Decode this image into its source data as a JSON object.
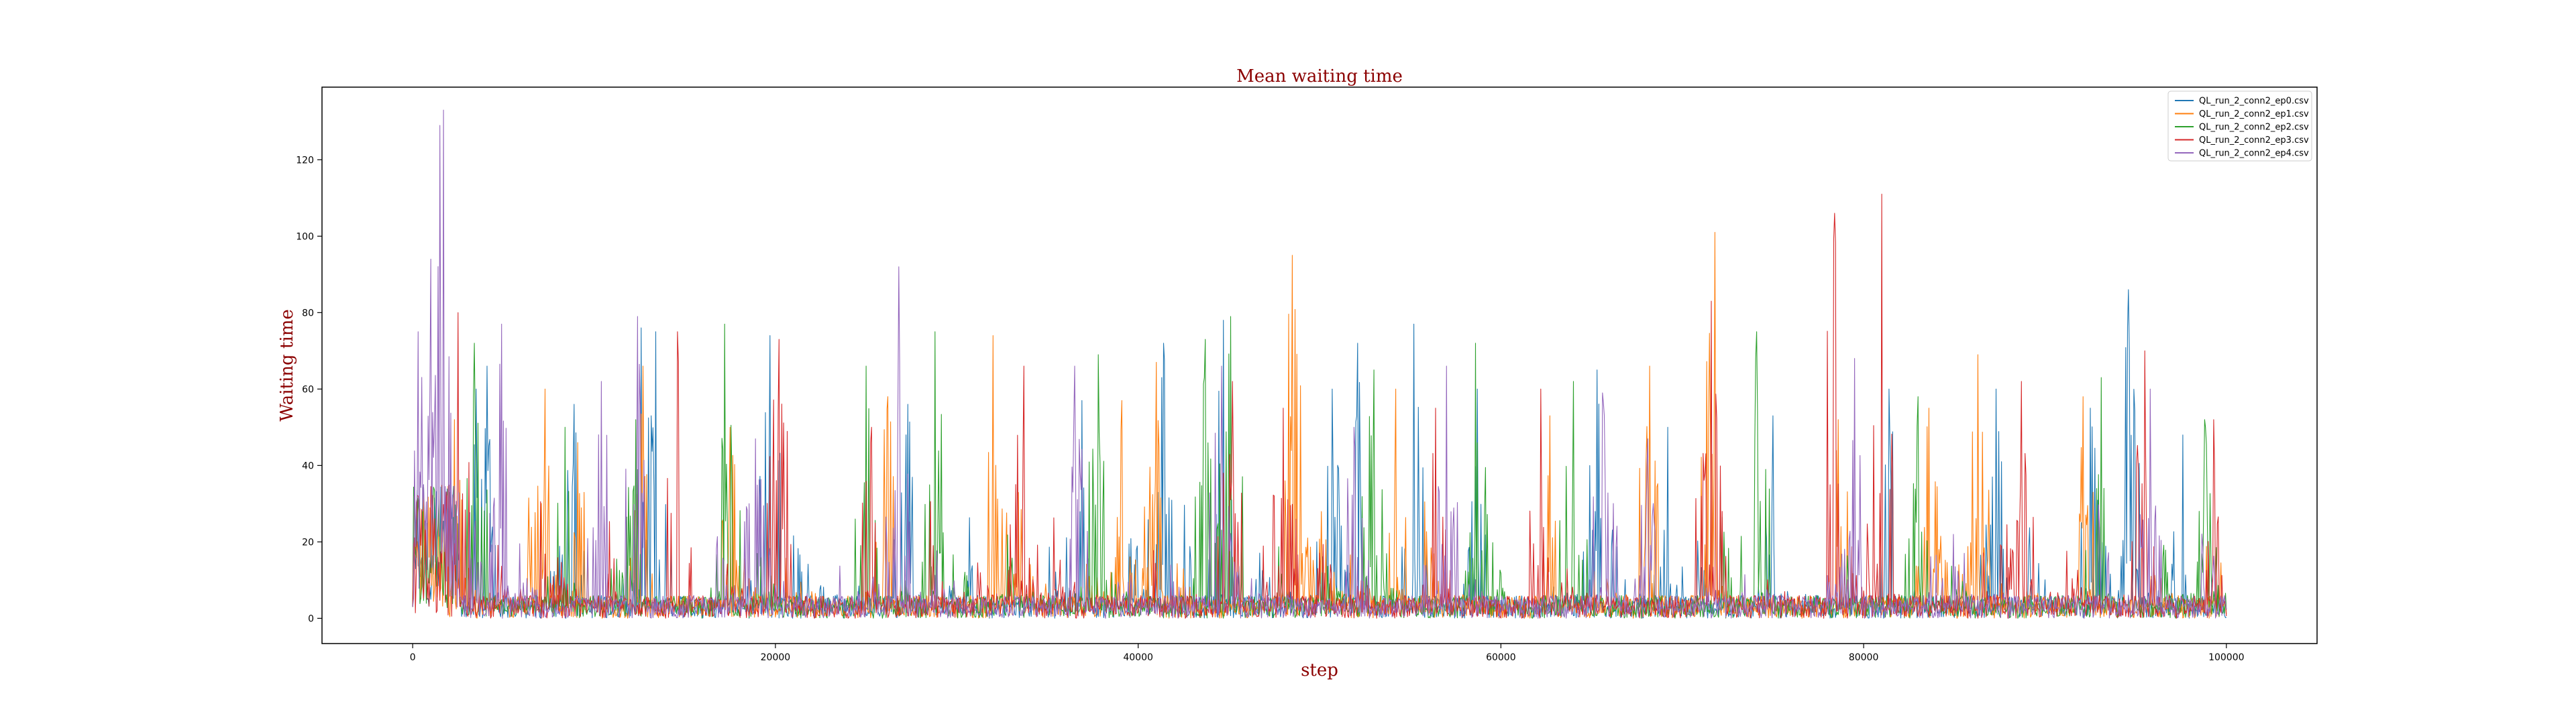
{
  "chart_data": {
    "type": "line",
    "title": "Mean waiting time",
    "xlabel": "step",
    "ylabel": "Waiting time",
    "xlim": [
      -5000,
      105000
    ],
    "ylim": [
      -6.6,
      139
    ],
    "xticks": [
      0,
      20000,
      40000,
      60000,
      80000,
      100000
    ],
    "yticks": [
      0,
      20,
      40,
      60,
      80,
      100,
      120
    ],
    "grid": false,
    "legend_position": "top-right",
    "title_color": "#8b0000",
    "label_color": "#8b0000",
    "series": [
      {
        "name": "QL_run_2_conn2_ep0.csv",
        "color": "#1f77b4",
        "peaks": [
          [
            600,
            35
          ],
          [
            3500,
            60
          ],
          [
            4100,
            66
          ],
          [
            8900,
            56
          ],
          [
            12600,
            76
          ],
          [
            13400,
            75
          ],
          [
            19700,
            74
          ],
          [
            27300,
            56
          ],
          [
            36900,
            57
          ],
          [
            41400,
            72
          ],
          [
            44700,
            78
          ],
          [
            50700,
            60
          ],
          [
            52100,
            72
          ],
          [
            55200,
            77
          ],
          [
            58700,
            60
          ],
          [
            65300,
            65
          ],
          [
            69200,
            50
          ],
          [
            75000,
            53
          ],
          [
            81400,
            60
          ],
          [
            87300,
            60
          ],
          [
            92500,
            55
          ],
          [
            94600,
            86
          ],
          [
            97600,
            48
          ]
        ]
      },
      {
        "name": "QL_run_2_conn2_ep1.csv",
        "color": "#ff7f0e",
        "peaks": [
          [
            2300,
            52
          ],
          [
            7300,
            60
          ],
          [
            9100,
            46
          ],
          [
            12700,
            66
          ],
          [
            17500,
            50
          ],
          [
            26200,
            58
          ],
          [
            32000,
            74
          ],
          [
            39100,
            57
          ],
          [
            41000,
            67
          ],
          [
            48500,
            95
          ],
          [
            54200,
            60
          ],
          [
            62700,
            53
          ],
          [
            68200,
            66
          ],
          [
            71800,
            101
          ],
          [
            78600,
            52
          ],
          [
            83600,
            55
          ],
          [
            86300,
            69
          ],
          [
            92100,
            58
          ]
        ]
      },
      {
        "name": "QL_run_2_conn2_ep2.csv",
        "color": "#2ca02c",
        "peaks": [
          [
            3400,
            72
          ],
          [
            8400,
            50
          ],
          [
            12300,
            52
          ],
          [
            17200,
            77
          ],
          [
            25000,
            66
          ],
          [
            28800,
            75
          ],
          [
            37800,
            69
          ],
          [
            43700,
            73
          ],
          [
            45100,
            79
          ],
          [
            53000,
            65
          ],
          [
            58600,
            72
          ],
          [
            64000,
            62
          ],
          [
            74100,
            75
          ],
          [
            83000,
            58
          ],
          [
            93100,
            63
          ],
          [
            98800,
            52
          ]
        ]
      },
      {
        "name": "QL_run_2_conn2_ep3.csv",
        "color": "#d62728",
        "peaks": [
          [
            2500,
            80
          ],
          [
            14600,
            75
          ],
          [
            20200,
            73
          ],
          [
            25300,
            50
          ],
          [
            33700,
            66
          ],
          [
            45200,
            62
          ],
          [
            48000,
            55
          ],
          [
            56400,
            55
          ],
          [
            62200,
            60
          ],
          [
            71600,
            83
          ],
          [
            78400,
            106
          ],
          [
            81000,
            111
          ],
          [
            88700,
            62
          ],
          [
            95500,
            70
          ],
          [
            99300,
            52
          ]
        ]
      },
      {
        "name": "QL_run_2_conn2_ep4.csv",
        "color": "#9467bd",
        "peaks": [
          [
            300,
            75
          ],
          [
            1000,
            94
          ],
          [
            1500,
            129
          ],
          [
            1700,
            133
          ],
          [
            4900,
            77
          ],
          [
            10400,
            62
          ],
          [
            12400,
            79
          ],
          [
            18900,
            47
          ],
          [
            26800,
            92
          ],
          [
            36500,
            66
          ],
          [
            44600,
            66
          ],
          [
            51900,
            50
          ],
          [
            57000,
            66
          ],
          [
            65600,
            59
          ],
          [
            68100,
            47
          ],
          [
            79500,
            68
          ],
          [
            95800,
            60
          ]
        ]
      }
    ]
  }
}
